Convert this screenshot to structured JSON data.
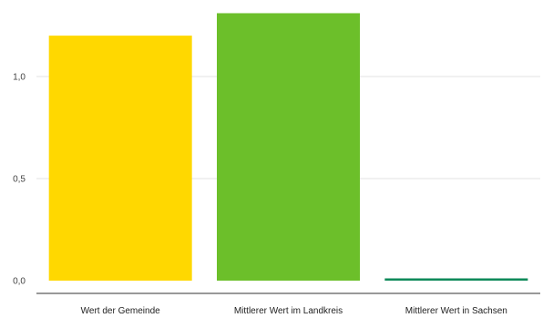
{
  "chart_data": {
    "type": "bar",
    "categories": [
      "Wert der Gemeinde",
      "Mittlerer Wert im Landkreis",
      "Mittlerer Wert in Sachsen"
    ],
    "values": [
      1.2,
      1.31,
      0.008
    ],
    "colors": [
      "#ffd800",
      "#6cbf2a",
      "#0f8a5a"
    ],
    "yticks": [
      "0,0",
      "0,5",
      "1,0"
    ],
    "ytick_values": [
      0,
      0.5,
      1.0
    ],
    "ylim": [
      0,
      1.33
    ],
    "grid": true,
    "legend": "none",
    "title": "",
    "xlabel": "",
    "ylabel": ""
  }
}
